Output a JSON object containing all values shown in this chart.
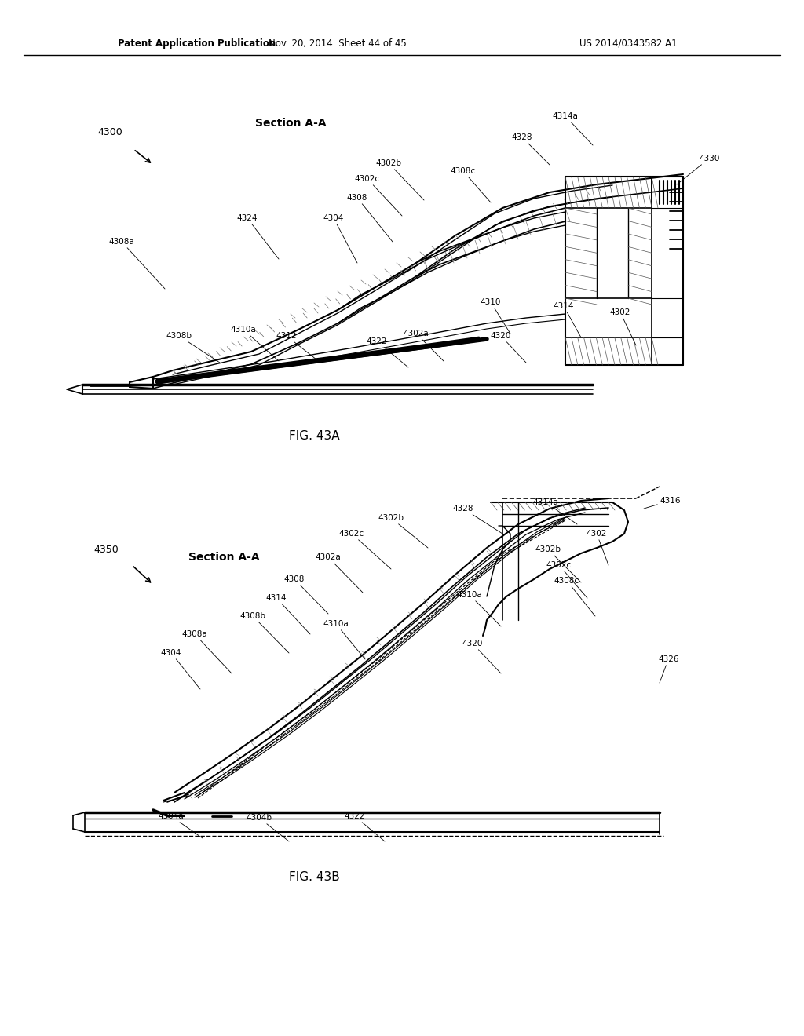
{
  "background_color": "#ffffff",
  "header_left": "Patent Application Publication",
  "header_center": "Nov. 20, 2014  Sheet 44 of 45",
  "header_right": "US 2014/0343582 A1",
  "fig43a_caption": "FIG. 43A",
  "fig43b_caption": "FIG. 43B"
}
